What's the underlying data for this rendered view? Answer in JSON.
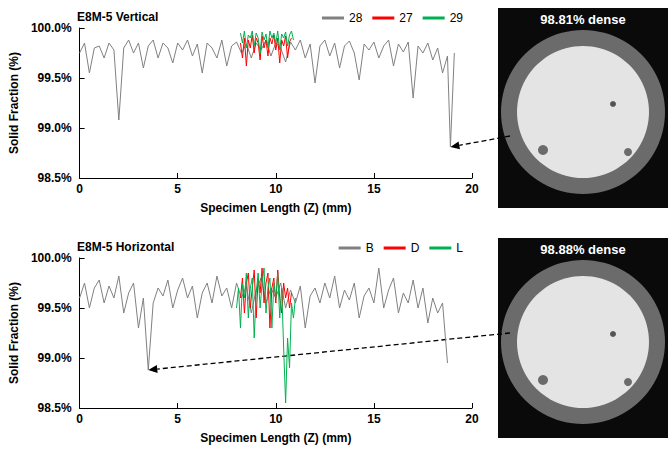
{
  "chart_data": [
    {
      "type": "line",
      "title": "E8M-5 Vertical",
      "x_label": "Specimen Length (Z) (mm)",
      "y_label": "Solid Fraction (%)",
      "xlim": [
        0,
        20
      ],
      "xticks": [
        0,
        5,
        10,
        15,
        20
      ],
      "ylim": [
        98.5,
        100.0
      ],
      "yticks": [
        {
          "value": 98.5,
          "label": "98.5%"
        },
        {
          "value": 99.0,
          "label": "99.0%"
        },
        {
          "value": 99.5,
          "label": "99.5%"
        },
        {
          "value": 100.0,
          "label": "100.0%"
        }
      ],
      "grid": false,
      "legend": "upper right",
      "series": [
        {
          "name": "28",
          "color": "#808080",
          "x": [
            0,
            0.25,
            0.5,
            0.75,
            1,
            1.25,
            1.5,
            1.75,
            2,
            2.25,
            2.5,
            2.75,
            3,
            3.25,
            3.5,
            3.75,
            4,
            4.25,
            4.5,
            4.75,
            5,
            5.25,
            5.5,
            5.75,
            6,
            6.25,
            6.5,
            6.75,
            7,
            7.25,
            7.5,
            7.75,
            8,
            8.25,
            8.5,
            8.75,
            9,
            9.25,
            9.5,
            9.75,
            10,
            10.25,
            10.5,
            10.75,
            11,
            11.25,
            11.5,
            11.75,
            12,
            12.25,
            12.5,
            12.75,
            13,
            13.25,
            13.5,
            13.75,
            14,
            14.25,
            14.5,
            14.75,
            15,
            15.25,
            15.5,
            15.75,
            16,
            16.25,
            16.5,
            16.75,
            17,
            17.25,
            17.5,
            17.75,
            18,
            18.25,
            18.5,
            18.75,
            18.9,
            19.1
          ],
          "values": [
            99.75,
            99.85,
            99.55,
            99.8,
            99.82,
            99.7,
            99.85,
            99.78,
            99.08,
            99.8,
            99.88,
            99.75,
            99.85,
            99.6,
            99.82,
            99.88,
            99.7,
            99.85,
            99.8,
            99.65,
            99.85,
            99.78,
            99.88,
            99.72,
            99.84,
            99.55,
            99.85,
            99.8,
            99.7,
            99.88,
            99.62,
            99.82,
            99.86,
            99.75,
            99.84,
            99.7,
            99.85,
            99.78,
            99.88,
            99.72,
            99.85,
            99.8,
            99.66,
            99.86,
            99.78,
            99.88,
            99.7,
            99.84,
            99.45,
            99.82,
            99.88,
            99.72,
            99.85,
            99.6,
            99.82,
            99.87,
            99.75,
            99.48,
            99.84,
            99.78,
            99.86,
            99.7,
            99.82,
            99.88,
            99.62,
            99.84,
            99.76,
            99.86,
            99.3,
            99.82,
            99.75,
            99.85,
            99.68,
            99.8,
            99.55,
            99.72,
            98.81,
            99.75
          ]
        },
        {
          "name": "27",
          "color": "#ff0000",
          "x": [
            8.2,
            8.3,
            8.4,
            8.5,
            8.6,
            8.7,
            8.8,
            8.9,
            9.0,
            9.1,
            9.2,
            9.3,
            9.4,
            9.5,
            9.6,
            9.7,
            9.8,
            9.9,
            10.0,
            10.1,
            10.2,
            10.3,
            10.4,
            10.5,
            10.6,
            10.7,
            10.8
          ],
          "values": [
            99.85,
            99.7,
            99.9,
            99.62,
            99.88,
            99.8,
            99.93,
            99.75,
            99.9,
            99.85,
            99.68,
            99.92,
            99.8,
            99.88,
            99.72,
            99.9,
            99.84,
            99.93,
            99.78,
            99.9,
            99.65,
            99.88,
            99.82,
            99.92,
            99.7,
            99.86,
            99.9
          ]
        },
        {
          "name": "29",
          "color": "#00b050",
          "x": [
            8.2,
            8.3,
            8.4,
            8.5,
            8.6,
            8.7,
            8.8,
            8.9,
            9.0,
            9.1,
            9.2,
            9.3,
            9.4,
            9.5,
            9.6,
            9.7,
            9.8,
            9.9,
            10.0,
            10.1,
            10.2,
            10.3,
            10.4,
            10.5,
            10.6,
            10.7,
            10.8,
            10.9
          ],
          "values": [
            99.95,
            99.85,
            99.97,
            99.8,
            99.93,
            99.9,
            99.97,
            99.82,
            99.95,
            99.9,
            99.75,
            99.96,
            99.88,
            99.94,
            99.8,
            99.97,
            99.9,
            99.95,
            99.85,
            99.97,
            99.78,
            99.94,
            99.9,
            99.96,
            99.82,
            99.93,
            99.97,
            99.88
          ]
        }
      ],
      "annotations": [
        {
          "text": "98.81% dense",
          "x": 18.9,
          "y": 98.81
        }
      ]
    },
    {
      "type": "line",
      "title": "E8M-5 Horizontal",
      "x_label": "Specimen Length (Z) (mm)",
      "y_label": "Solid Fraction (%)",
      "xlim": [
        0,
        20
      ],
      "xticks": [
        0,
        5,
        10,
        15,
        20
      ],
      "ylim": [
        98.5,
        100.0
      ],
      "yticks": [
        {
          "value": 98.5,
          "label": "98.5%"
        },
        {
          "value": 99.0,
          "label": "99.0%"
        },
        {
          "value": 99.5,
          "label": "99.5%"
        },
        {
          "value": 100.0,
          "label": "100.0%"
        }
      ],
      "grid": false,
      "legend": "upper right",
      "series": [
        {
          "name": "B",
          "color": "#808080",
          "x": [
            0,
            0.25,
            0.5,
            0.75,
            1,
            1.25,
            1.5,
            1.75,
            2,
            2.25,
            2.5,
            2.75,
            3,
            3.25,
            3.5,
            3.75,
            4,
            4.25,
            4.5,
            4.75,
            5,
            5.25,
            5.5,
            5.75,
            6,
            6.25,
            6.5,
            6.75,
            7,
            7.25,
            7.5,
            7.75,
            8,
            8.25,
            8.5,
            8.75,
            9,
            9.25,
            9.5,
            9.75,
            10,
            10.25,
            10.5,
            10.75,
            11,
            11.25,
            11.5,
            11.75,
            12,
            12.25,
            12.5,
            12.75,
            13,
            13.25,
            13.5,
            13.75,
            14,
            14.25,
            14.5,
            14.75,
            15,
            15.25,
            15.5,
            15.75,
            16,
            16.25,
            16.5,
            16.75,
            17,
            17.25,
            17.5,
            17.75,
            18,
            18.25,
            18.5,
            18.75
          ],
          "values": [
            99.6,
            99.75,
            99.5,
            99.7,
            99.78,
            99.55,
            99.72,
            99.6,
            99.82,
            99.45,
            99.65,
            99.75,
            99.3,
            99.6,
            98.88,
            99.55,
            99.7,
            99.62,
            99.78,
            99.5,
            99.68,
            99.8,
            99.6,
            99.72,
            99.4,
            99.65,
            99.75,
            99.55,
            99.82,
            99.62,
            99.7,
            99.5,
            99.75,
            99.6,
            99.72,
            99.45,
            99.68,
            99.8,
            99.55,
            99.7,
            99.6,
            99.75,
            99.5,
            99.68,
            99.55,
            99.72,
            99.3,
            99.62,
            99.7,
            99.55,
            99.75,
            99.6,
            99.82,
            99.5,
            99.68,
            99.58,
            99.75,
            99.4,
            99.62,
            99.7,
            99.55,
            99.9,
            99.5,
            99.68,
            99.8,
            99.45,
            99.65,
            99.55,
            99.78,
            99.5,
            99.7,
            99.35,
            99.6,
            99.45,
            99.55,
            98.95
          ]
        },
        {
          "name": "D",
          "color": "#ff0000",
          "x": [
            8.2,
            8.3,
            8.4,
            8.5,
            8.6,
            8.7,
            8.8,
            8.9,
            9.0,
            9.1,
            9.2,
            9.3,
            9.4,
            9.5,
            9.6,
            9.7,
            9.8,
            9.9,
            10.0,
            10.1,
            10.2,
            10.3,
            10.4,
            10.5,
            10.6,
            10.7,
            10.8
          ],
          "values": [
            99.6,
            99.8,
            99.45,
            99.75,
            99.85,
            99.5,
            99.7,
            99.88,
            99.4,
            99.8,
            99.65,
            99.9,
            99.55,
            99.75,
            99.85,
            99.3,
            99.7,
            99.8,
            99.55,
            99.88,
            99.6,
            99.45,
            99.75,
            99.6,
            99.7,
            99.5,
            99.65
          ]
        },
        {
          "name": "L",
          "color": "#00b050",
          "x": [
            8.0,
            8.1,
            8.2,
            8.3,
            8.4,
            8.5,
            8.6,
            8.7,
            8.8,
            8.9,
            9.0,
            9.1,
            9.2,
            9.3,
            9.4,
            9.5,
            9.6,
            9.7,
            9.8,
            9.9,
            10.0,
            10.1,
            10.2,
            10.3,
            10.4,
            10.5,
            10.6,
            10.7,
            10.8,
            10.9,
            11.0
          ],
          "values": [
            99.5,
            99.7,
            99.3,
            99.75,
            99.6,
            99.85,
            99.4,
            99.7,
            99.8,
            99.2,
            99.65,
            99.85,
            99.5,
            99.75,
            99.9,
            99.45,
            99.7,
            99.8,
            99.3,
            99.75,
            99.6,
            99.85,
            99.4,
            99.7,
            99.1,
            98.55,
            99.2,
            98.9,
            99.55,
            99.4,
            99.6
          ]
        }
      ],
      "annotations": [
        {
          "text": "98.88% dense",
          "x": 3.5,
          "y": 98.88
        }
      ]
    }
  ]
}
